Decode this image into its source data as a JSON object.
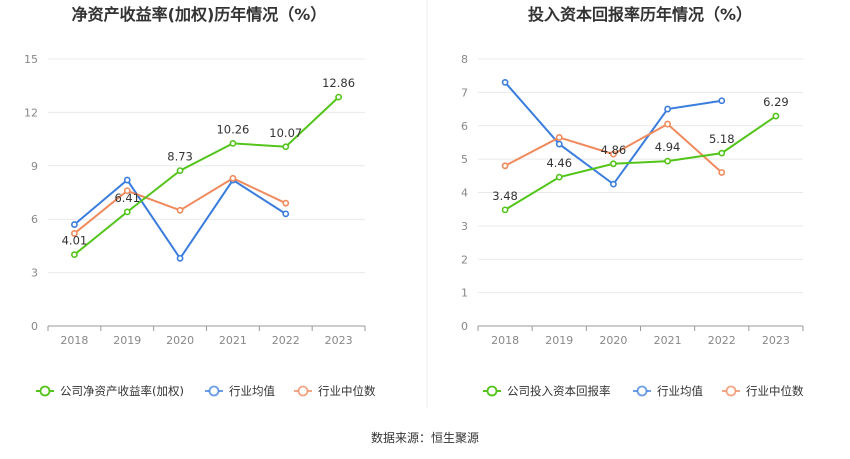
{
  "source_text": "数据来源：恒生聚源",
  "chart_data": [
    {
      "type": "line",
      "title": "净资产收益率(加权)历年情况（%）",
      "categories": [
        "2018",
        "2019",
        "2020",
        "2021",
        "2022",
        "2023"
      ],
      "ylim": [
        0,
        15
      ],
      "yticks": [
        "0",
        "3",
        "6",
        "9",
        "12",
        "15"
      ],
      "grid": true,
      "legend_position": "bottom",
      "series": [
        {
          "name": "公司净资产收益率(加权)",
          "color": "#52c41a",
          "values": [
            4.01,
            6.41,
            8.73,
            10.26,
            10.07,
            12.86
          ],
          "labels": [
            "4.01",
            "6.41",
            "8.73",
            "10.26",
            "10.07",
            "12.86"
          ]
        },
        {
          "name": "行业均值",
          "color": "#3b7ddd",
          "values": [
            5.7,
            8.2,
            3.8,
            8.2,
            6.3,
            null
          ]
        },
        {
          "name": "行业中位数",
          "color": "#f08a5d",
          "values": [
            5.2,
            7.6,
            6.5,
            8.3,
            6.9,
            null
          ]
        }
      ]
    },
    {
      "type": "line",
      "title": "投入资本回报率历年情况（%）",
      "categories": [
        "2018",
        "2019",
        "2020",
        "2021",
        "2022",
        "2023"
      ],
      "ylim": [
        0,
        8
      ],
      "yticks": [
        "0",
        "1",
        "2",
        "3",
        "4",
        "5",
        "6",
        "7",
        "8"
      ],
      "grid": true,
      "legend_position": "bottom",
      "series": [
        {
          "name": "公司投入资本回报率",
          "color": "#52c41a",
          "values": [
            3.48,
            4.46,
            4.86,
            4.94,
            5.18,
            6.29
          ],
          "labels": [
            "3.48",
            "4.46",
            "4.86",
            "4.94",
            "5.18",
            "6.29"
          ]
        },
        {
          "name": "行业均值",
          "color": "#3b7ddd",
          "values": [
            7.3,
            5.45,
            4.25,
            6.5,
            6.75,
            null
          ]
        },
        {
          "name": "行业中位数",
          "color": "#f08a5d",
          "values": [
            4.8,
            5.65,
            5.15,
            6.05,
            4.6,
            null
          ]
        }
      ]
    }
  ]
}
